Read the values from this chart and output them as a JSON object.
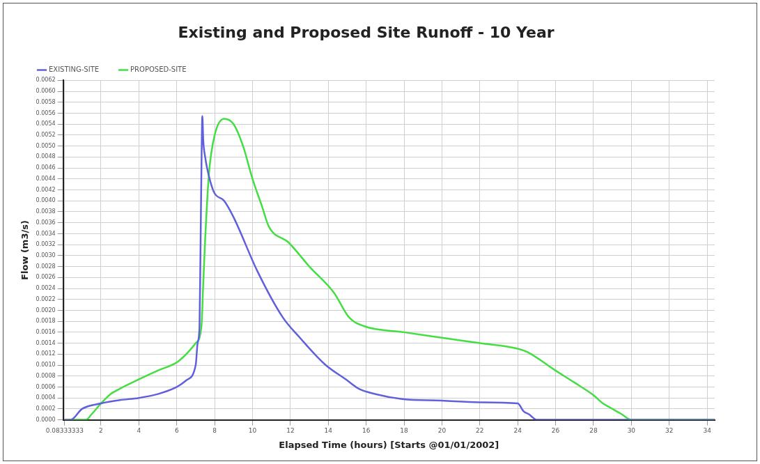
{
  "chart_data": {
    "type": "line",
    "title": "Existing and Proposed Site Runoff - 10 Year",
    "xlabel": "Elapsed Time (hours) [Starts @01/01/2002]",
    "ylabel": "Flow (m3/s)",
    "legend": "top left",
    "grid": true,
    "marker": "none",
    "line_style": "solid",
    "xlim": [
      0,
      34.4
    ],
    "xticks": [
      {
        "value": 0.08333333,
        "label": "0.08333333"
      },
      2,
      4,
      6,
      8,
      10,
      12,
      14,
      16,
      18,
      20,
      22,
      24,
      26,
      28,
      30,
      32,
      34
    ],
    "ylim": [
      0,
      0.0062
    ],
    "yticks": [
      {
        "value": 0,
        "label": "0.0000"
      },
      {
        "value": 0.0002,
        "label": "0.0002"
      },
      {
        "value": 0.0004,
        "label": "0.0004"
      },
      {
        "value": 0.0006,
        "label": "0.0006"
      },
      {
        "value": 0.0008,
        "label": "0.0008"
      },
      {
        "value": 0.001,
        "label": "0.0010"
      },
      {
        "value": 0.0012,
        "label": "0.0012"
      },
      {
        "value": 0.0014,
        "label": "0.0014"
      },
      {
        "value": 0.0016,
        "label": "0.0016"
      },
      {
        "value": 0.0018,
        "label": "0.0018"
      },
      {
        "value": 0.002,
        "label": "0.0020"
      },
      {
        "value": 0.0022,
        "label": "0.0022"
      },
      {
        "value": 0.0024,
        "label": "0.0024"
      },
      {
        "value": 0.0026,
        "label": "0.0026"
      },
      {
        "value": 0.0028,
        "label": "0.0028"
      },
      {
        "value": 0.003,
        "label": "0.0030"
      },
      {
        "value": 0.0032,
        "label": "0.0032"
      },
      {
        "value": 0.0034,
        "label": "0.0034"
      },
      {
        "value": 0.0036,
        "label": "0.0036"
      },
      {
        "value": 0.0038,
        "label": "0.0038"
      },
      {
        "value": 0.004,
        "label": "0.0040"
      },
      {
        "value": 0.0042,
        "label": "0.0042"
      },
      {
        "value": 0.0044,
        "label": "0.0044"
      },
      {
        "value": 0.0046,
        "label": "0.0046"
      },
      {
        "value": 0.0048,
        "label": "0.0048"
      },
      {
        "value": 0.005,
        "label": "0.0050"
      },
      {
        "value": 0.0052,
        "label": "0.0052"
      },
      {
        "value": 0.0054,
        "label": "0.0054"
      },
      {
        "value": 0.0056,
        "label": "0.0056"
      },
      {
        "value": 0.0058,
        "label": "0.0058"
      },
      {
        "value": 0.006,
        "label": "0.0060"
      },
      {
        "value": 0.0062,
        "label": "0.0062"
      }
    ],
    "series": [
      {
        "name": "EXISTING-SITE",
        "color": "#6060dd",
        "x": [
          0.08,
          0.4,
          1,
          2,
          3,
          4,
          5,
          6,
          6.5,
          7,
          7.1,
          7.2,
          7.25,
          7.3,
          7.35,
          7.4,
          7.5,
          7.6,
          7.95,
          8.5,
          9,
          10.25,
          11.6,
          12.5,
          13.8,
          15,
          15.6,
          16.5,
          17.9,
          20,
          22,
          24,
          24.3,
          24.6,
          25,
          25.5,
          26,
          28,
          30,
          34.4
        ],
        "values": [
          0,
          0,
          0.0002,
          0.0003,
          0.00036,
          0.0004,
          0.00047,
          0.0006,
          0.00072,
          0.001,
          0.0014,
          0.0017,
          0.003,
          0.0045,
          0.00555,
          0.0051,
          0.0048,
          0.0046,
          0.00417,
          0.004,
          0.0037,
          0.00272,
          0.00187,
          0.0015,
          0.00102,
          0.00072,
          0.00057,
          0.00047,
          0.00038,
          0.00035,
          0.00032,
          0.0003,
          0.00016,
          0.0001,
          0,
          0,
          0,
          0,
          0,
          0
        ]
      },
      {
        "name": "PROPOSED-SITE",
        "color": "#44dd44",
        "x": [
          0.08,
          1.2,
          1.5,
          2,
          2.5,
          3,
          4,
          5,
          6,
          6.5,
          7,
          7.3,
          7.4,
          7.5,
          7.7,
          8,
          8.5,
          9,
          9.5,
          10,
          10.5,
          10.86,
          11.9,
          13,
          14.3,
          15.1,
          15.9,
          18,
          20,
          22,
          24,
          24.5,
          26,
          27,
          28,
          28.5,
          29,
          29.5,
          30,
          31,
          34.4
        ],
        "values": [
          0,
          0,
          0.0001,
          0.0003,
          0.00047,
          0.00057,
          0.00074,
          0.0009,
          0.00105,
          0.0012,
          0.0014,
          0.0017,
          0.0025,
          0.0033,
          0.0045,
          0.0052,
          0.0055,
          0.0054,
          0.005,
          0.0044,
          0.0039,
          0.00353,
          0.00324,
          0.0028,
          0.00232,
          0.00187,
          0.00171,
          0.0016,
          0.0015,
          0.0014,
          0.0013,
          0.00124,
          0.0009,
          0.00068,
          0.00045,
          0.0003,
          0.0002,
          0.0001,
          0,
          0,
          0
        ]
      }
    ]
  }
}
